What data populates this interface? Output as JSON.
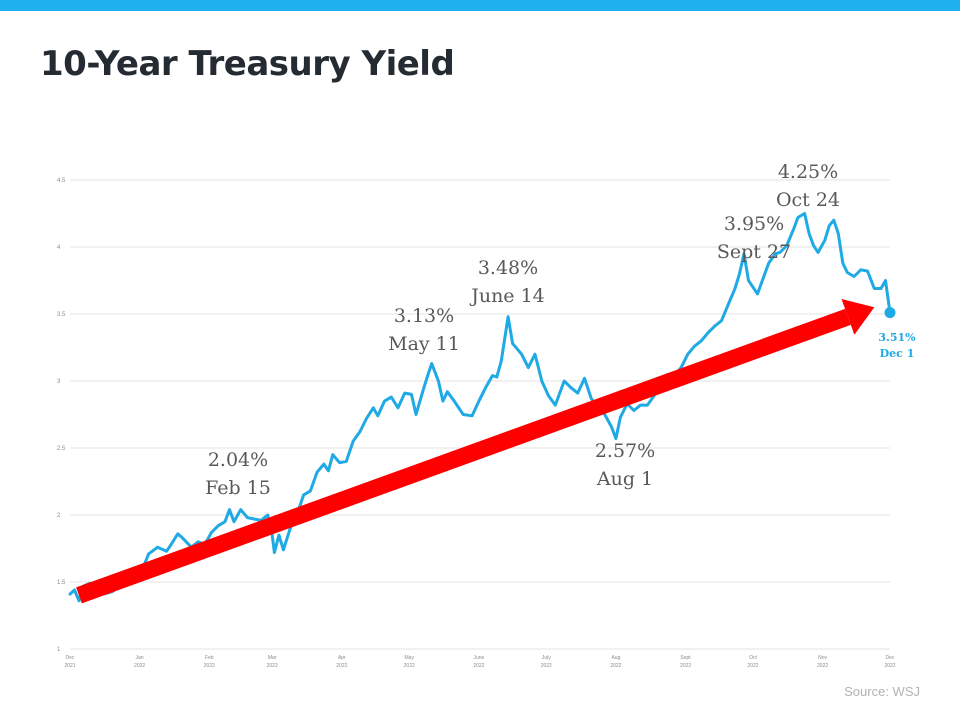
{
  "colors": {
    "top_bar": "#1fb0ee",
    "line": "#1fa9e5",
    "arrow": "#ff0000",
    "grid": "#e3e3e3",
    "annotation": "#595959",
    "end_label": "#1fa9e5"
  },
  "source": "Source: WSJ",
  "chart_data": {
    "type": "line",
    "title": "10-Year Treasury Yield",
    "xlabel": "",
    "ylabel": "",
    "ylim": [
      1,
      4.5
    ],
    "grid": true,
    "yticks": [
      "1",
      "1.5",
      "2",
      "2.5",
      "3",
      "3.5",
      "4",
      "4.5"
    ],
    "xticks": [
      {
        "date": "2021-12-01",
        "month": "Dec",
        "year": "2021"
      },
      {
        "date": "2022-01-01",
        "month": "Jan",
        "year": "2022"
      },
      {
        "date": "2022-02-01",
        "month": "Feb",
        "year": "2022"
      },
      {
        "date": "2022-03-01",
        "month": "Mar",
        "year": "2022"
      },
      {
        "date": "2022-04-01",
        "month": "Apr",
        "year": "2022"
      },
      {
        "date": "2022-05-01",
        "month": "May",
        "year": "2022"
      },
      {
        "date": "2022-06-01",
        "month": "June",
        "year": "2022"
      },
      {
        "date": "2022-07-01",
        "month": "July",
        "year": "2022"
      },
      {
        "date": "2022-08-01",
        "month": "Aug",
        "year": "2022"
      },
      {
        "date": "2022-09-01",
        "month": "Sept",
        "year": "2022"
      },
      {
        "date": "2022-10-01",
        "month": "Oct",
        "year": "2022"
      },
      {
        "date": "2022-11-01",
        "month": "Nov",
        "year": "2022"
      },
      {
        "date": "2022-12-01",
        "month": "Dec",
        "year": "2022"
      }
    ],
    "series": [
      {
        "points": [
          [
            "2021-12-01",
            1.41
          ],
          [
            "2021-12-03",
            1.44
          ],
          [
            "2021-12-05",
            1.36
          ],
          [
            "2021-12-07",
            1.47
          ],
          [
            "2021-12-10",
            1.49
          ],
          [
            "2021-12-13",
            1.44
          ],
          [
            "2021-12-16",
            1.41
          ],
          [
            "2021-12-20",
            1.43
          ],
          [
            "2021-12-24",
            1.48
          ],
          [
            "2021-12-28",
            1.5
          ],
          [
            "2022-01-01",
            1.54
          ],
          [
            "2022-01-05",
            1.71
          ],
          [
            "2022-01-09",
            1.76
          ],
          [
            "2022-01-13",
            1.73
          ],
          [
            "2022-01-15",
            1.78
          ],
          [
            "2022-01-18",
            1.86
          ],
          [
            "2022-01-20",
            1.83
          ],
          [
            "2022-01-24",
            1.76
          ],
          [
            "2022-01-27",
            1.8
          ],
          [
            "2022-01-30",
            1.78
          ],
          [
            "2022-02-02",
            1.87
          ],
          [
            "2022-02-05",
            1.92
          ],
          [
            "2022-02-08",
            1.95
          ],
          [
            "2022-02-10",
            2.04
          ],
          [
            "2022-02-12",
            1.95
          ],
          [
            "2022-02-15",
            2.04
          ],
          [
            "2022-02-18",
            1.98
          ],
          [
            "2022-02-21",
            1.97
          ],
          [
            "2022-02-24",
            1.96
          ],
          [
            "2022-02-27",
            2.0
          ],
          [
            "2022-03-01",
            1.85
          ],
          [
            "2022-03-02",
            1.72
          ],
          [
            "2022-03-04",
            1.85
          ],
          [
            "2022-03-06",
            1.74
          ],
          [
            "2022-03-09",
            1.9
          ],
          [
            "2022-03-12",
            2.0
          ],
          [
            "2022-03-15",
            2.15
          ],
          [
            "2022-03-18",
            2.18
          ],
          [
            "2022-03-21",
            2.32
          ],
          [
            "2022-03-24",
            2.38
          ],
          [
            "2022-03-26",
            2.33
          ],
          [
            "2022-03-28",
            2.45
          ],
          [
            "2022-03-31",
            2.39
          ],
          [
            "2022-04-03",
            2.4
          ],
          [
            "2022-04-06",
            2.55
          ],
          [
            "2022-04-09",
            2.62
          ],
          [
            "2022-04-12",
            2.72
          ],
          [
            "2022-04-15",
            2.8
          ],
          [
            "2022-04-17",
            2.74
          ],
          [
            "2022-04-20",
            2.85
          ],
          [
            "2022-04-23",
            2.88
          ],
          [
            "2022-04-26",
            2.8
          ],
          [
            "2022-04-29",
            2.91
          ],
          [
            "2022-05-02",
            2.9
          ],
          [
            "2022-05-04",
            2.75
          ],
          [
            "2022-05-07",
            2.92
          ],
          [
            "2022-05-09",
            3.03
          ],
          [
            "2022-05-11",
            3.13
          ],
          [
            "2022-05-14",
            3.0
          ],
          [
            "2022-05-16",
            2.85
          ],
          [
            "2022-05-18",
            2.92
          ],
          [
            "2022-05-21",
            2.85
          ],
          [
            "2022-05-25",
            2.75
          ],
          [
            "2022-05-29",
            2.74
          ],
          [
            "2022-06-01",
            2.85
          ],
          [
            "2022-06-04",
            2.95
          ],
          [
            "2022-06-07",
            3.04
          ],
          [
            "2022-06-09",
            3.03
          ],
          [
            "2022-06-11",
            3.15
          ],
          [
            "2022-06-14",
            3.48
          ],
          [
            "2022-06-16",
            3.28
          ],
          [
            "2022-06-18",
            3.24
          ],
          [
            "2022-06-20",
            3.2
          ],
          [
            "2022-06-23",
            3.1
          ],
          [
            "2022-06-26",
            3.2
          ],
          [
            "2022-06-29",
            3.0
          ],
          [
            "2022-07-02",
            2.89
          ],
          [
            "2022-07-05",
            2.82
          ],
          [
            "2022-07-09",
            3.0
          ],
          [
            "2022-07-12",
            2.95
          ],
          [
            "2022-07-15",
            2.91
          ],
          [
            "2022-07-18",
            3.02
          ],
          [
            "2022-07-21",
            2.87
          ],
          [
            "2022-07-24",
            2.8
          ],
          [
            "2022-07-27",
            2.75
          ],
          [
            "2022-07-30",
            2.66
          ],
          [
            "2022-08-01",
            2.57
          ],
          [
            "2022-08-03",
            2.73
          ],
          [
            "2022-08-06",
            2.83
          ],
          [
            "2022-08-09",
            2.78
          ],
          [
            "2022-08-12",
            2.82
          ],
          [
            "2022-08-15",
            2.82
          ],
          [
            "2022-08-18",
            2.89
          ],
          [
            "2022-08-21",
            2.98
          ],
          [
            "2022-08-24",
            3.05
          ],
          [
            "2022-08-27",
            3.04
          ],
          [
            "2022-08-30",
            3.1
          ],
          [
            "2022-09-02",
            3.2
          ],
          [
            "2022-09-05",
            3.26
          ],
          [
            "2022-09-08",
            3.3
          ],
          [
            "2022-09-11",
            3.36
          ],
          [
            "2022-09-14",
            3.41
          ],
          [
            "2022-09-17",
            3.45
          ],
          [
            "2022-09-20",
            3.57
          ],
          [
            "2022-09-23",
            3.69
          ],
          [
            "2022-09-25",
            3.8
          ],
          [
            "2022-09-27",
            3.95
          ],
          [
            "2022-09-29",
            3.75
          ],
          [
            "2022-10-01",
            3.7
          ],
          [
            "2022-10-03",
            3.65
          ],
          [
            "2022-10-05",
            3.74
          ],
          [
            "2022-10-08",
            3.88
          ],
          [
            "2022-10-11",
            3.95
          ],
          [
            "2022-10-13",
            3.96
          ],
          [
            "2022-10-16",
            4.01
          ],
          [
            "2022-10-19",
            4.13
          ],
          [
            "2022-10-21",
            4.22
          ],
          [
            "2022-10-24",
            4.25
          ],
          [
            "2022-10-26",
            4.1
          ],
          [
            "2022-10-28",
            4.01
          ],
          [
            "2022-10-30",
            3.96
          ],
          [
            "2022-11-02",
            4.05
          ],
          [
            "2022-11-04",
            4.16
          ],
          [
            "2022-11-06",
            4.2
          ],
          [
            "2022-11-08",
            4.1
          ],
          [
            "2022-11-10",
            3.88
          ],
          [
            "2022-11-12",
            3.81
          ],
          [
            "2022-11-15",
            3.78
          ],
          [
            "2022-11-18",
            3.83
          ],
          [
            "2022-11-21",
            3.82
          ],
          [
            "2022-11-24",
            3.69
          ],
          [
            "2022-11-27",
            3.69
          ],
          [
            "2022-11-29",
            3.75
          ],
          [
            "2022-12-01",
            3.51
          ]
        ]
      }
    ],
    "annotations": [
      {
        "value": "2.04%",
        "date": "Feb 15"
      },
      {
        "value": "3.13%",
        "date": "May 11"
      },
      {
        "value": "3.48%",
        "date": "June 14"
      },
      {
        "value": "2.57%",
        "date": "Aug 1"
      },
      {
        "value": "3.95%",
        "date": "Sept 27"
      },
      {
        "value": "4.25%",
        "date": "Oct 24"
      }
    ],
    "end_point": {
      "value": "3.51%",
      "date": "Dec 1"
    },
    "trend_arrow": {
      "from": [
        "2021-12-05",
        1.4
      ],
      "to": [
        "2022-11-24",
        3.55
      ]
    }
  }
}
